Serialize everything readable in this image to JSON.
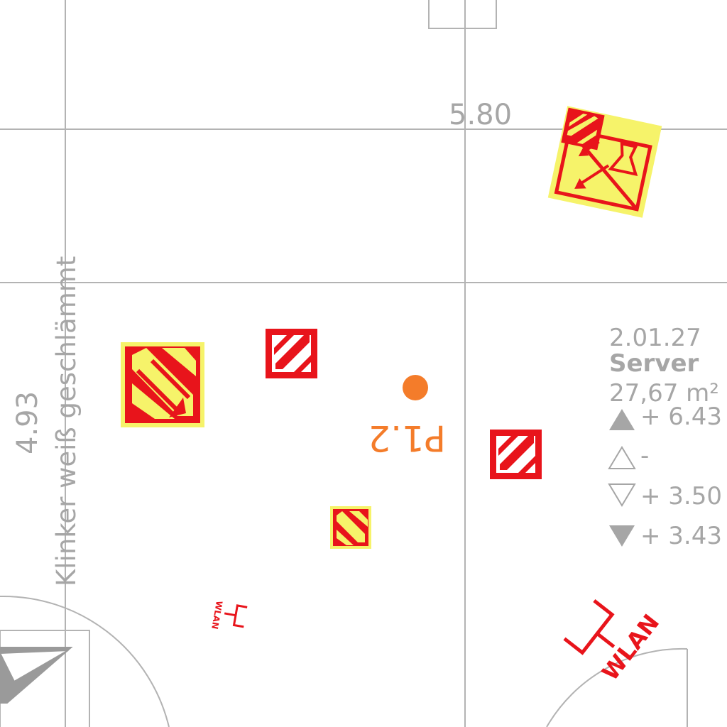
{
  "dimension_top": "5.80",
  "dimension_left": "4.93",
  "wall_note": "Klinker weiß geschlämmt",
  "room": {
    "number": "2.01.27",
    "name": "Server",
    "area": "27,67 m²",
    "level_top_filled": "+ 6.43",
    "level_top_outline": "-",
    "level_bottom_outline": "+ 3.50",
    "level_bottom_filled": "+ 3.43"
  },
  "point_label": "P1.2",
  "wlan_label": "WLAN",
  "colors": {
    "gridline": "#b3b3b3",
    "label": "#a6a6a6",
    "symbol_red": "#e8141b",
    "symbol_yellow": "#f6f36a",
    "point_orange": "#f47c2a"
  }
}
